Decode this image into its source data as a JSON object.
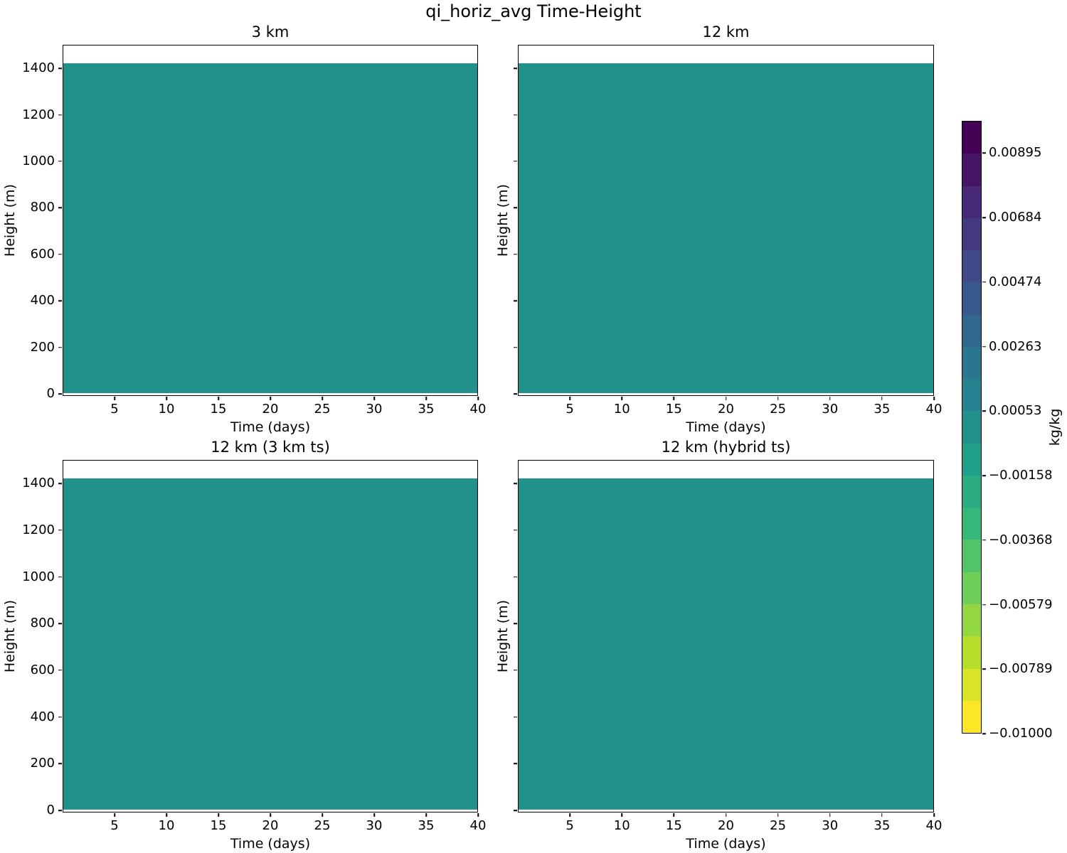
{
  "figure": {
    "suptitle": "qi_horiz_avg Time-Height",
    "background_color": "#ffffff",
    "text_color": "#000000"
  },
  "chart_data": {
    "type": "heatmap",
    "title": "qi_horiz_avg Time-Height",
    "xlabel": "Time (days)",
    "ylabel": "Height (m)",
    "x_range_days": [
      0,
      40
    ],
    "x_ticks": [
      5,
      10,
      15,
      20,
      25,
      30,
      35,
      40
    ],
    "y_range_m": [
      0,
      1500
    ],
    "y_ticks": [
      0,
      200,
      400,
      600,
      800,
      1000,
      1200,
      1400
    ],
    "grid": false,
    "panels": [
      {
        "title": "3 km",
        "show_ytick_labels": true
      },
      {
        "title": "12 km",
        "show_ytick_labels": false
      },
      {
        "title": "12 km (3 km ts)",
        "show_ytick_labels": true
      },
      {
        "title": "12 km (hybrid ts)",
        "show_ytick_labels": false
      }
    ],
    "field": {
      "description": "Uniform near-zero qi band from ~10 m to ~1425 m across all 40 days, identical in all four panels; white above 1425 m and a thin white strip at 0 m",
      "band_y_min_m": 10,
      "band_y_max_m": 1425,
      "value_kgkg": 0.0,
      "fill_color": "#21918c"
    },
    "colorbar": {
      "label": "kg/kg",
      "colormap": "viridis_r",
      "value_range": [
        -0.01,
        0.01
      ],
      "n_segments": 19,
      "tick_labels": [
        "0.00895",
        "0.00684",
        "0.00474",
        "0.00263",
        "0.00053",
        "−0.00158",
        "−0.00368",
        "−0.00579",
        "−0.00789",
        "−0.01000"
      ],
      "tick_values": [
        0.00895,
        0.00684,
        0.00474,
        0.00263,
        0.00053,
        -0.00158,
        -0.00368,
        -0.00579,
        -0.00789,
        -0.01
      ],
      "segment_colors_top_to_bottom": [
        "#440154",
        "#461566",
        "#482878",
        "#433981",
        "#3e4a89",
        "#38598c",
        "#31688e",
        "#2c758e",
        "#26828e",
        "#21918c",
        "#1f9e89",
        "#2aab81",
        "#35b779",
        "#52c369",
        "#6ece58",
        "#92d642",
        "#b5de2b",
        "#d9e328",
        "#fde725"
      ]
    }
  }
}
